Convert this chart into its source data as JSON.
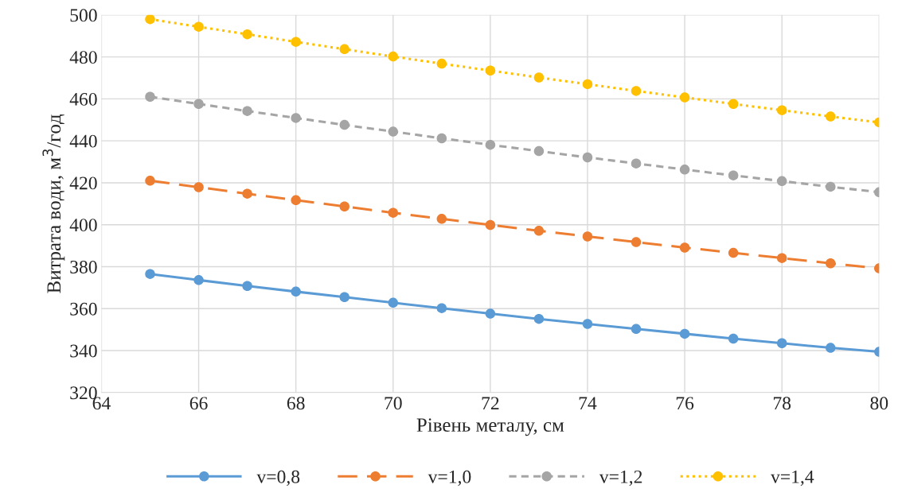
{
  "chart_data": {
    "type": "line",
    "xlabel": "Рівень металу, см",
    "ylabel": "Витрата води, м$^{3}$/год",
    "x": [
      65,
      66,
      67,
      68,
      69,
      70,
      71,
      72,
      73,
      74,
      75,
      76,
      77,
      78,
      79,
      80
    ],
    "series": [
      {
        "name": "v=0,8",
        "color": "#5b9bd5",
        "line_style": "solid",
        "values": [
          376.5,
          373.6,
          370.8,
          368.1,
          365.5,
          362.8,
          360.2,
          357.6,
          355.1,
          352.7,
          350.3,
          348.0,
          345.7,
          343.5,
          341.3,
          339.4
        ]
      },
      {
        "name": "v=1,0",
        "color": "#ed7d31",
        "line_style": "dashed",
        "values": [
          421.0,
          417.9,
          414.8,
          411.7,
          408.7,
          405.7,
          402.8,
          399.9,
          397.1,
          394.4,
          391.7,
          389.1,
          386.6,
          384.1,
          381.6,
          379.2
        ]
      },
      {
        "name": "v=1,2",
        "color": "#a5a5a5",
        "line_style": "dashed",
        "values": [
          461.0,
          457.6,
          454.2,
          450.9,
          447.6,
          444.4,
          441.2,
          438.1,
          435.1,
          432.1,
          429.2,
          426.3,
          423.5,
          420.8,
          418.1,
          415.5
        ]
      },
      {
        "name": "v=1,4",
        "color": "#ffc000",
        "line_style": "dotted",
        "values": [
          498.0,
          494.4,
          490.8,
          487.2,
          483.7,
          480.2,
          476.8,
          473.5,
          470.2,
          467.0,
          463.8,
          460.7,
          457.6,
          454.6,
          451.6,
          448.8
        ]
      }
    ],
    "xlim": [
      64,
      80
    ],
    "xticks": [
      64,
      66,
      68,
      70,
      72,
      74,
      76,
      78,
      80
    ],
    "ylim": [
      320,
      500
    ],
    "yticks": [
      320,
      340,
      360,
      380,
      400,
      420,
      440,
      460,
      480,
      500
    ],
    "grid": true,
    "legend": "bottom",
    "marker": "circle"
  }
}
